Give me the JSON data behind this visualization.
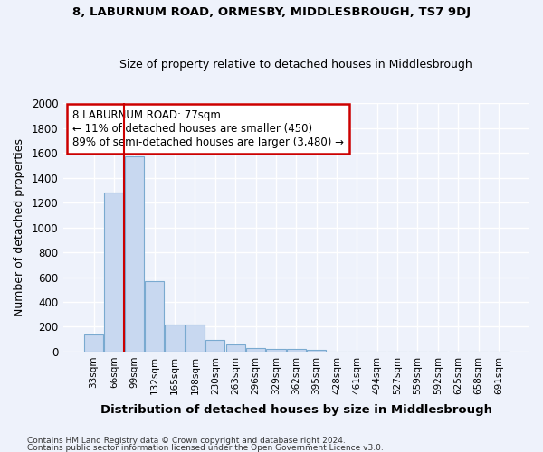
{
  "title1": "8, LABURNUM ROAD, ORMESBY, MIDDLESBROUGH, TS7 9DJ",
  "title2": "Size of property relative to detached houses in Middlesbrough",
  "xlabel": "Distribution of detached houses by size in Middlesbrough",
  "ylabel": "Number of detached properties",
  "categories": [
    "33sqm",
    "66sqm",
    "99sqm",
    "132sqm",
    "165sqm",
    "198sqm",
    "230sqm",
    "263sqm",
    "296sqm",
    "329sqm",
    "362sqm",
    "395sqm",
    "428sqm",
    "461sqm",
    "494sqm",
    "527sqm",
    "559sqm",
    "592sqm",
    "625sqm",
    "658sqm",
    "691sqm"
  ],
  "bar_heights": [
    140,
    1280,
    1570,
    570,
    220,
    215,
    95,
    55,
    28,
    18,
    18,
    15,
    0,
    0,
    0,
    0,
    0,
    0,
    0,
    0,
    0
  ],
  "bar_color": "#c8d8f0",
  "bar_edge_color": "#7aaad0",
  "ylim": [
    0,
    2000
  ],
  "yticks": [
    0,
    200,
    400,
    600,
    800,
    1000,
    1200,
    1400,
    1600,
    1800,
    2000
  ],
  "red_line_x": 1.48,
  "annotation_line1": "8 LABURNUM ROAD: 77sqm",
  "annotation_line2": "← 11% of detached houses are smaller (450)",
  "annotation_line3": "89% of semi-detached houses are larger (3,480) →",
  "annotation_box_color": "#ffffff",
  "annotation_border_color": "#cc0000",
  "footer1": "Contains HM Land Registry data © Crown copyright and database right 2024.",
  "footer2": "Contains public sector information licensed under the Open Government Licence v3.0.",
  "bg_color": "#eef2fb",
  "grid_color": "#ffffff"
}
